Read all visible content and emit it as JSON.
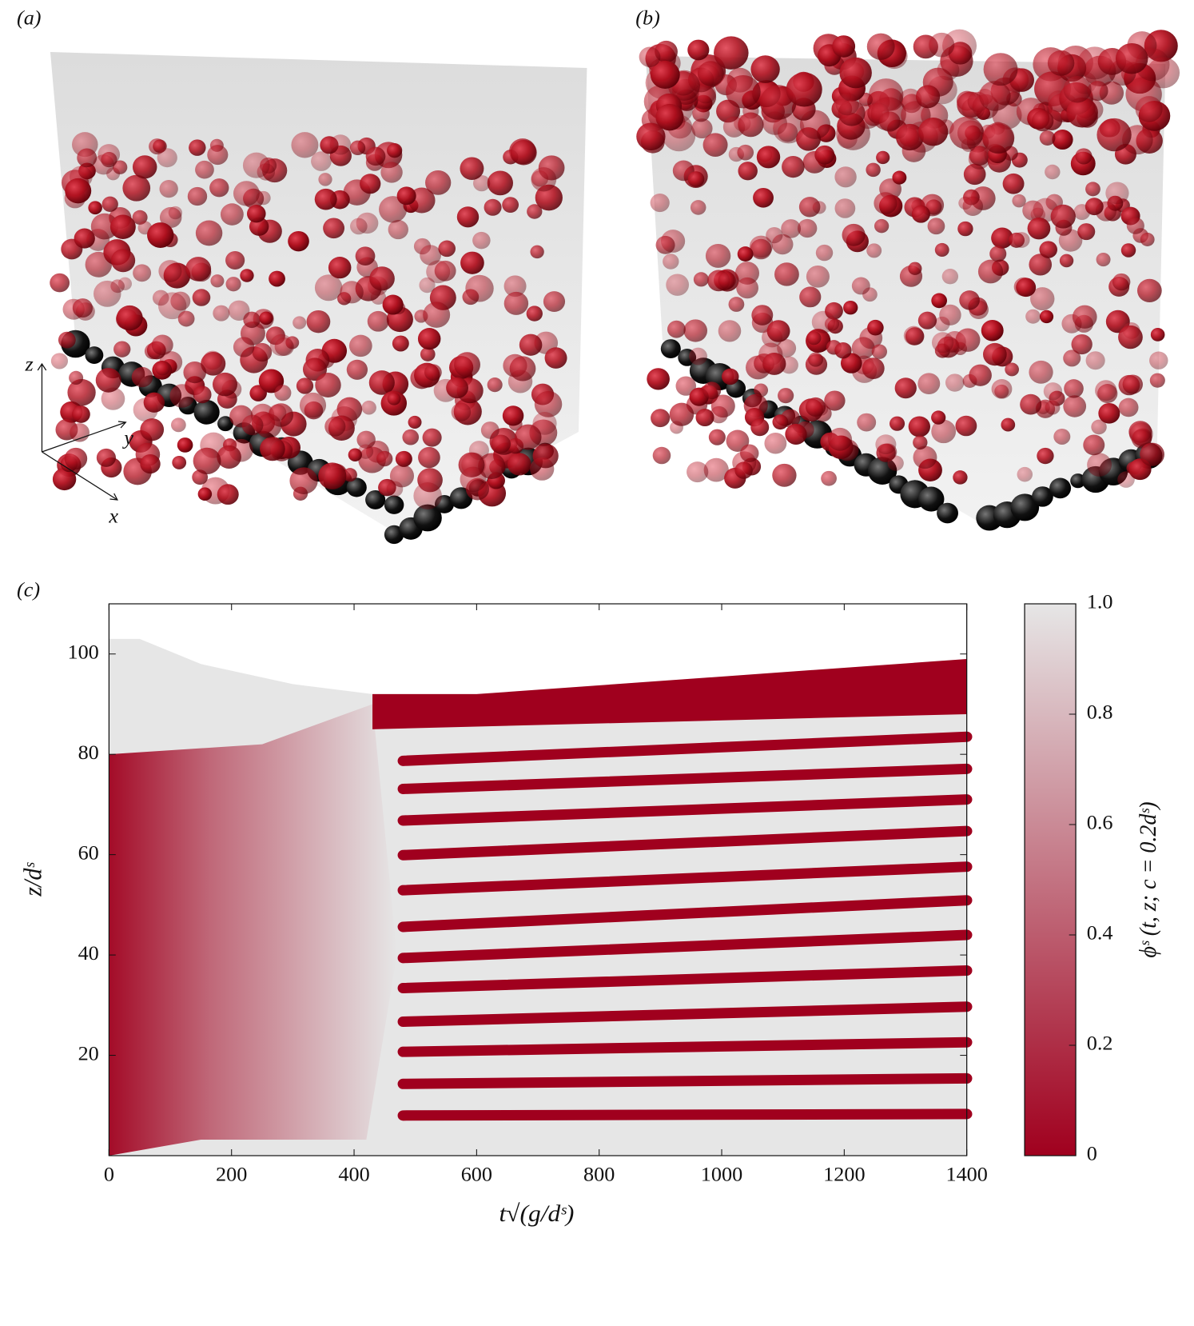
{
  "panels": {
    "a": "(a)",
    "b": "(b)",
    "c": "(c)"
  },
  "axes3d": {
    "x": "x",
    "y": "y",
    "z": "z"
  },
  "chart_data": {
    "type": "heatmap",
    "xlabel": "t√(g/dˢ)",
    "ylabel": "z/dˢ",
    "xlim": [
      0,
      1400
    ],
    "xticks": [
      0,
      200,
      400,
      600,
      800,
      1000,
      1200,
      1400
    ],
    "ylim": [
      0,
      110
    ],
    "yticks": [
      20,
      40,
      60,
      80,
      100
    ],
    "colorbar": {
      "label": "ϕˢ (t, z; c = 0.2dˢ)",
      "lim": [
        0,
        1
      ],
      "ticks": [
        0,
        0.2,
        0.4,
        0.6,
        0.8,
        {
          "value": 1,
          "label": "1.0"
        }
      ],
      "colors": [
        "#a0001e",
        "#e6e6e6"
      ]
    },
    "surface": {
      "x": [
        0,
        50,
        150,
        300,
        430,
        600,
        1400
      ],
      "z": [
        103,
        103,
        98,
        94,
        92,
        92,
        99
      ]
    },
    "top_layer_base": {
      "x": [
        430,
        1400
      ],
      "z": [
        85,
        88
      ]
    },
    "stripes": {
      "x": [
        480,
        1400
      ],
      "series": [
        {
          "values": [
            8,
            8.3
          ]
        },
        {
          "values": [
            14.3,
            15.4
          ]
        },
        {
          "values": [
            20.7,
            22.6
          ]
        },
        {
          "values": [
            26.7,
            29.7
          ]
        },
        {
          "values": [
            33.4,
            36.9
          ]
        },
        {
          "values": [
            39.4,
            44
          ]
        },
        {
          "values": [
            45.6,
            50.9
          ]
        },
        {
          "values": [
            52.9,
            57.6
          ]
        },
        {
          "values": [
            59.9,
            64.7
          ]
        },
        {
          "values": [
            66.8,
            71
          ]
        },
        {
          "values": [
            73.1,
            77.1
          ]
        },
        {
          "values": [
            78.7,
            83.5
          ]
        }
      ]
    }
  }
}
